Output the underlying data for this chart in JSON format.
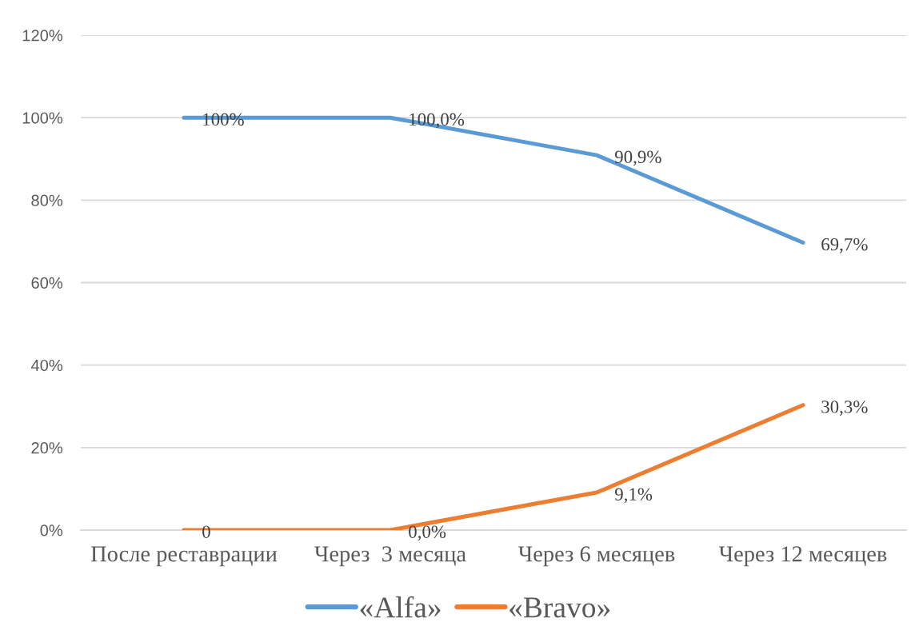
{
  "chart_data": {
    "type": "line",
    "categories": [
      "После реставрации",
      "Через  3 месяца",
      "Через 6 месяцев",
      "Через 12 месяцев"
    ],
    "series": [
      {
        "name": "«Alfa»",
        "color": "#5b9bd5",
        "values": [
          100,
          100,
          90.9,
          69.7
        ],
        "value_labels": [
          "100%",
          "100,0%",
          "90,9%",
          "69,7%"
        ]
      },
      {
        "name": "«Bravo»",
        "color": "#ed7d31",
        "values": [
          0,
          0,
          9.1,
          30.3
        ],
        "value_labels": [
          "0",
          "0,0%",
          "9,1%",
          "30,3%"
        ]
      }
    ],
    "ylim": [
      0,
      120
    ],
    "yticks": [
      {
        "value": 0,
        "label": "0%"
      },
      {
        "value": 20,
        "label": "20%"
      },
      {
        "value": 40,
        "label": "40%"
      },
      {
        "value": 60,
        "label": "60%"
      },
      {
        "value": 80,
        "label": "80%"
      },
      {
        "value": 100,
        "label": "100%"
      },
      {
        "value": 120,
        "label": "120%"
      }
    ],
    "grid": "y",
    "legend": "bottom"
  }
}
